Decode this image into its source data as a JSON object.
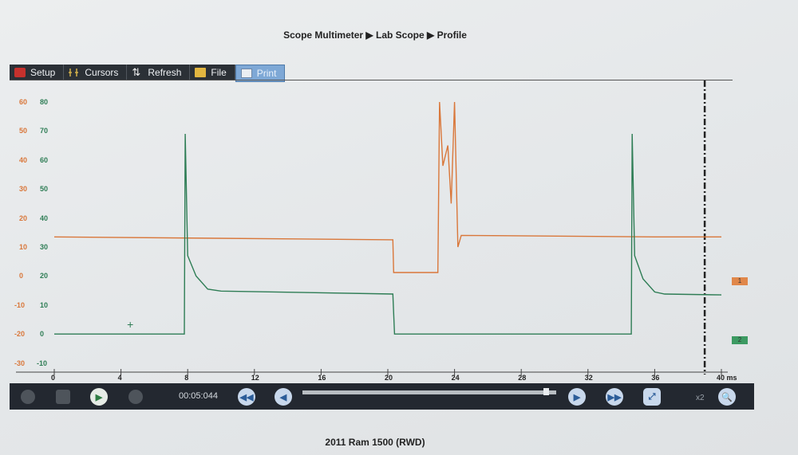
{
  "breadcrumb": "Scope Multimeter ▶ Lab Scope ▶ Profile",
  "toolbar": {
    "buttons": [
      {
        "label": "Setup",
        "icon": "toolbox-icon"
      },
      {
        "label": "Cursors",
        "icon": "cursors-icon"
      },
      {
        "label": "Refresh",
        "icon": "refresh-icon"
      },
      {
        "label": "File",
        "icon": "folder-icon"
      },
      {
        "label": "Print",
        "icon": "printer-icon"
      }
    ]
  },
  "channel_markers": [
    "1",
    "2"
  ],
  "playback": {
    "time": "00:05:044",
    "zoom": "x2",
    "position": 0.96
  },
  "footer_text": "2011 Ram 1500 (RWD)",
  "colors": {
    "ch1": "#d9773a",
    "ch2": "#2e7d55"
  },
  "chart_data": {
    "type": "line",
    "title": "",
    "xlabel": "ms",
    "xlim": [
      0,
      40
    ],
    "x_ticks": [
      "0",
      "4",
      "8",
      "12",
      "16",
      "20",
      "24",
      "28",
      "32",
      "36",
      "40 ms"
    ],
    "y_ticks_ch1": [
      "60",
      "50",
      "40",
      "30",
      "20",
      "10",
      "0",
      "-10",
      "-20",
      "-30"
    ],
    "y_ticks_ch2": [
      "80",
      "70",
      "60",
      "50",
      "40",
      "30",
      "20",
      "10",
      "0",
      "-10"
    ],
    "grid": false,
    "series": [
      {
        "name": "1",
        "color": "#d9773a",
        "axis": "ch1",
        "x": [
          0,
          20.3,
          20.35,
          23.0,
          23.1,
          23.3,
          23.6,
          23.8,
          24.0,
          24.2,
          24.4,
          36,
          40
        ],
        "y": [
          13.5,
          12.5,
          1.2,
          1.2,
          60,
          38,
          45,
          25,
          60,
          10,
          14,
          13.5,
          13.5
        ]
      },
      {
        "name": "2",
        "color": "#2e7d55",
        "axis": "ch2",
        "x": [
          0,
          7.8,
          7.85,
          8.0,
          8.5,
          9.2,
          10.0,
          20.3,
          20.4,
          34.6,
          34.65,
          34.8,
          35.3,
          36.0,
          36.6,
          40
        ],
        "y": [
          0,
          0,
          69,
          27,
          20,
          15.5,
          14.8,
          13.8,
          0,
          0,
          69,
          27,
          19,
          14.5,
          13.8,
          13.5
        ]
      }
    ],
    "vertical_cursor_x": 39.0
  }
}
